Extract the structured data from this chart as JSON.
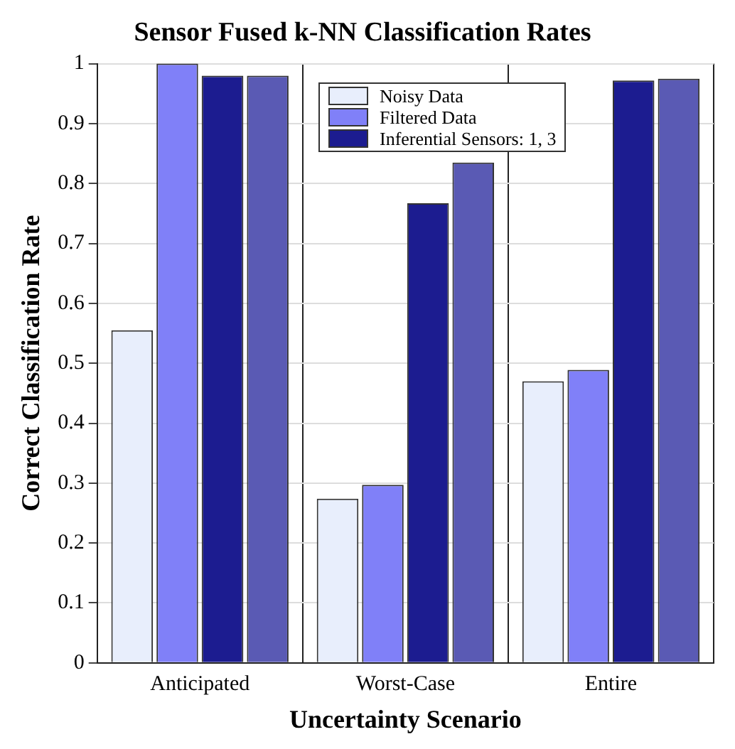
{
  "chart_data": {
    "type": "bar",
    "title": "Sensor Fused k-NN Classification Rates",
    "xlabel": "Uncertainty Scenario",
    "ylabel": "Correct Classification Rate",
    "categories": [
      "Anticipated",
      "Worst-Case",
      "Entire"
    ],
    "series": [
      {
        "name": "Noisy Data",
        "color": "#e8eefc",
        "values": [
          0.555,
          0.274,
          0.47
        ]
      },
      {
        "name": "Filtered Data",
        "color": "#8080f8",
        "values": [
          1.0,
          0.297,
          0.489
        ]
      },
      {
        "name": "Inferential Sensors: 1, 3",
        "color": "#1c1c90",
        "values": [
          0.98,
          0.767,
          0.972
        ]
      },
      {
        "color": "#5a5ab4",
        "values": [
          0.98,
          0.835,
          0.975
        ]
      }
    ],
    "ylim": [
      0,
      1
    ],
    "yticks": [
      0,
      0.1,
      0.2,
      0.3,
      0.4,
      0.5,
      0.6,
      0.7,
      0.8,
      0.9,
      1
    ],
    "grid": true,
    "legend": "top right"
  }
}
